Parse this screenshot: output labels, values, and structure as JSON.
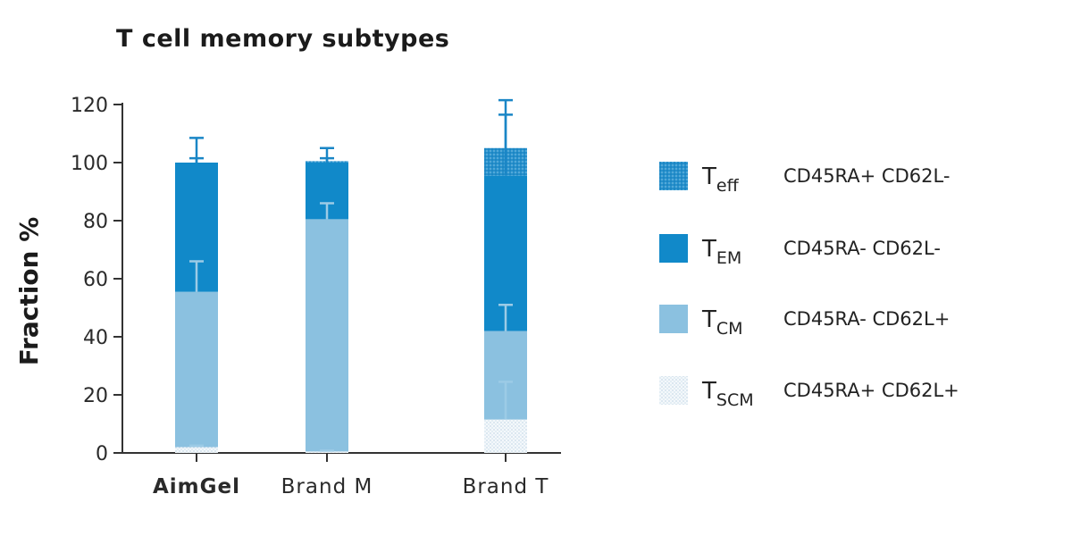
{
  "chart_data": {
    "type": "bar",
    "stacked": true,
    "title": "T cell memory subtypes",
    "ylabel": "Fraction %",
    "xlabel": "",
    "ylim": [
      0,
      120
    ],
    "yticks": [
      0,
      20,
      40,
      60,
      80,
      100,
      120
    ],
    "categories": [
      "AimGel",
      "Brand M",
      "Brand T"
    ],
    "bold_categories": [
      "AimGel"
    ],
    "series": [
      {
        "name": "TSCM",
        "symbol": "T",
        "subscript": "SCM",
        "marker": "CD45RA+ CD62L+",
        "color": "#e4eef5",
        "values": [
          2,
          0.5,
          11.5
        ],
        "errors": [
          0.5,
          0.3,
          13
        ]
      },
      {
        "name": "TCM",
        "symbol": "T",
        "subscript": "CM",
        "marker": "CD45RA- CD62L+",
        "color": "#8bc1e0",
        "values": [
          53.5,
          80,
          30.5
        ],
        "errors": [
          10.5,
          5.5,
          9
        ]
      },
      {
        "name": "TEM",
        "symbol": "T",
        "subscript": "EM",
        "marker": "CD45RA- CD62L-",
        "color": "#1189c9",
        "values": [
          44.5,
          19.5,
          53.5
        ],
        "errors": [
          1.5,
          1.5,
          21
        ]
      },
      {
        "name": "Teff",
        "symbol": "T",
        "subscript": "eff",
        "marker": "CD45RA+ CD62L-",
        "color": "#3a99d0",
        "values": [
          0,
          0.5,
          9.5
        ],
        "errors": [
          8.5,
          4.5,
          16.5
        ]
      }
    ],
    "legend_order": [
      "Teff",
      "TEM",
      "TCM",
      "TSCM"
    ],
    "legend_position": "right",
    "grid": false
  }
}
